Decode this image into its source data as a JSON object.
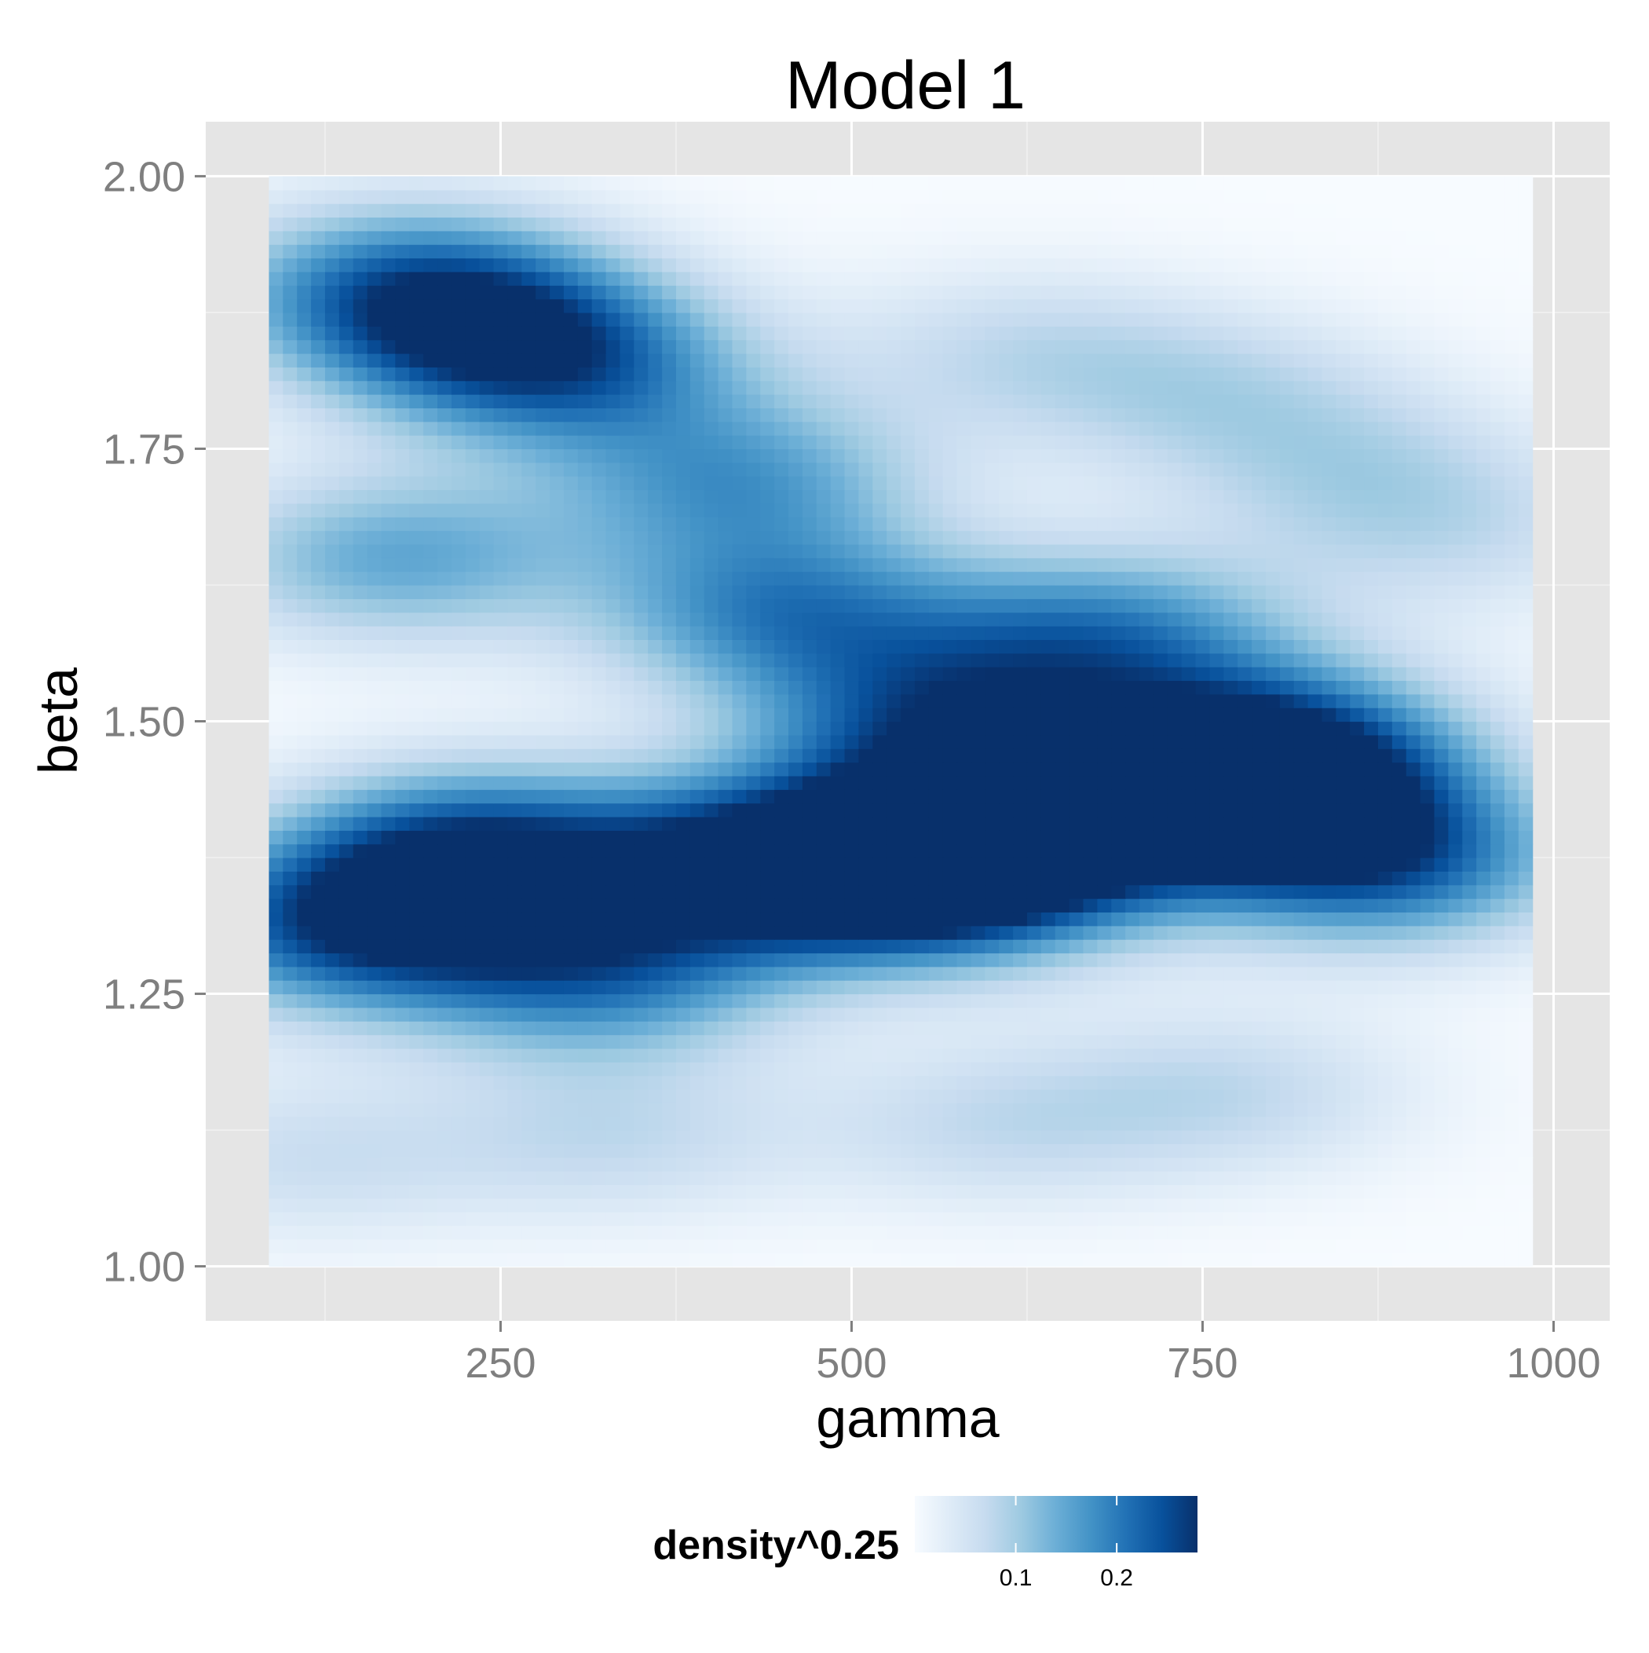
{
  "chart_data": {
    "type": "heatmap",
    "title": "Model 1",
    "xlabel": "gamma",
    "ylabel": "beta",
    "xlim": [
      40,
      1040
    ],
    "ylim": [
      0.95,
      2.05
    ],
    "x_ticks": [
      250,
      500,
      750,
      1000
    ],
    "x_tick_labels": [
      "250",
      "500",
      "750",
      "1000"
    ],
    "y_ticks": [
      1.0,
      1.25,
      1.5,
      1.75,
      2.0
    ],
    "y_tick_labels": [
      "1.00",
      "1.25",
      "1.50",
      "1.75",
      "2.00"
    ],
    "grid": true,
    "panel_background": "#e5e5e5",
    "data_extent": {
      "x": [
        85,
        985
      ],
      "y": [
        1.0,
        2.0
      ]
    },
    "legend": {
      "title": "density^0.25",
      "position": "bottom",
      "ticks": [
        0.1,
        0.2
      ],
      "tick_labels": [
        "0.1",
        "0.2"
      ],
      "range": [
        0.0,
        0.28
      ],
      "colors": [
        "#f7fbff",
        "#deebf7",
        "#c6dbef",
        "#9ecae1",
        "#6baed6",
        "#4292c6",
        "#2171b5",
        "#08519c",
        "#08306b"
      ]
    },
    "density_peaks": [
      {
        "gamma": 440,
        "beta": 1.37,
        "value": 0.255
      },
      {
        "gamma": 610,
        "beta": 1.4,
        "value": 0.255
      },
      {
        "gamma": 230,
        "beta": 1.38,
        "value": 0.245
      },
      {
        "gamma": 780,
        "beta": 1.43,
        "value": 0.245
      },
      {
        "gamma": 145,
        "beta": 1.31,
        "value": 0.23
      },
      {
        "gamma": 560,
        "beta": 1.35,
        "value": 0.225
      },
      {
        "gamma": 880,
        "beta": 1.37,
        "value": 0.205
      },
      {
        "gamma": 800,
        "beta": 1.48,
        "value": 0.2
      },
      {
        "gamma": 560,
        "beta": 1.5,
        "value": 0.19
      },
      {
        "gamma": 320,
        "beta": 1.27,
        "value": 0.185
      },
      {
        "gamma": 450,
        "beta": 1.6,
        "value": 0.175
      },
      {
        "gamma": 680,
        "beta": 1.58,
        "value": 0.175
      },
      {
        "gamma": 180,
        "beta": 1.9,
        "value": 0.165
      },
      {
        "gamma": 235,
        "beta": 1.86,
        "value": 0.155
      },
      {
        "gamma": 300,
        "beta": 1.82,
        "value": 0.15
      },
      {
        "gamma": 420,
        "beta": 1.72,
        "value": 0.15
      },
      {
        "gamma": 175,
        "beta": 1.65,
        "value": 0.145
      },
      {
        "gamma": 330,
        "beta": 1.12,
        "value": 0.07
      },
      {
        "gamma": 600,
        "beta": 1.13,
        "value": 0.065
      },
      {
        "gamma": 770,
        "beta": 1.16,
        "value": 0.07
      },
      {
        "gamma": 620,
        "beta": 1.84,
        "value": 0.065
      },
      {
        "gamma": 760,
        "beta": 1.8,
        "value": 0.07
      },
      {
        "gamma": 860,
        "beta": 1.73,
        "value": 0.065
      },
      {
        "gamma": 930,
        "beta": 1.67,
        "value": 0.055
      },
      {
        "gamma": 110,
        "beta": 1.1,
        "value": 0.06
      }
    ]
  }
}
